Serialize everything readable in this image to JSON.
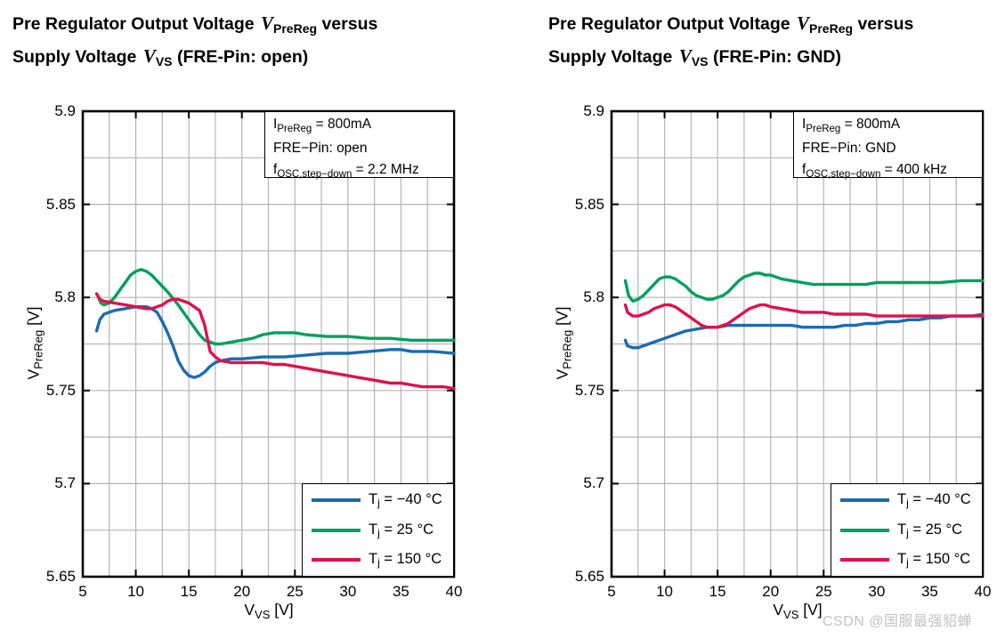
{
  "watermark": "CSDN @国服最强貂蝉",
  "colors": {
    "grid": "#b5b5b5",
    "frame": "#000000",
    "tick": "#000000",
    "watermark": "#c3c3c3"
  },
  "chart_data": [
    {
      "type": "line",
      "title": {
        "l1a": "Pre Regulator Output Voltage ",
        "v1": "V",
        "s1": "PreReg",
        "l1b": " versus",
        "l2a": "Supply Voltage ",
        "v2": "V",
        "s2": "VS",
        "l2b": " (FRE-Pin: open)"
      },
      "xlabel": {
        "sym": "V",
        "sub": "VS",
        "rest": " [V]"
      },
      "ylabel": {
        "sym": "V",
        "sub": "PreReg",
        "rest": " [V]"
      },
      "xlim": [
        5,
        40
      ],
      "ylim": [
        5.65,
        5.9
      ],
      "x_ticks": [
        "5",
        "10",
        "15",
        "20",
        "25",
        "30",
        "35",
        "40"
      ],
      "y_ticks": [
        "5.65",
        "5.7",
        "5.75",
        "5.8",
        "5.85",
        "5.9"
      ],
      "x_minor_step": 2.5,
      "y_minor_step": 0.025,
      "grid": true,
      "legend_position": "bottom-right",
      "annotation": {
        "line1": {
          "sym": "I",
          "sub": "PreReg",
          "rest": " = 800mA"
        },
        "line2": "FRE−Pin: open",
        "line3": {
          "sym": "f",
          "sub": "OSC,step−down",
          "rest": " = 2.2 MHz"
        }
      },
      "series": [
        {
          "name": "Tj = −40 °C",
          "label": {
            "sym": "T",
            "sub": "j",
            "rest": " = −40 °C"
          },
          "color": "#1b6bb2",
          "points": [
            [
              6.3,
              5.782
            ],
            [
              6.6,
              5.788
            ],
            [
              7,
              5.791
            ],
            [
              8,
              5.793
            ],
            [
              9,
              5.794
            ],
            [
              10,
              5.795
            ],
            [
              11,
              5.795
            ],
            [
              11.5,
              5.794
            ],
            [
              12,
              5.792
            ],
            [
              12.5,
              5.787
            ],
            [
              13,
              5.781
            ],
            [
              13.5,
              5.774
            ],
            [
              14,
              5.766
            ],
            [
              14.5,
              5.761
            ],
            [
              15,
              5.758
            ],
            [
              15.5,
              5.757
            ],
            [
              16,
              5.758
            ],
            [
              16.5,
              5.76
            ],
            [
              17,
              5.763
            ],
            [
              17.5,
              5.765
            ],
            [
              18,
              5.766
            ],
            [
              19,
              5.767
            ],
            [
              20,
              5.767
            ],
            [
              22,
              5.768
            ],
            [
              24,
              5.768
            ],
            [
              26,
              5.769
            ],
            [
              28,
              5.77
            ],
            [
              30,
              5.77
            ],
            [
              32,
              5.771
            ],
            [
              34,
              5.772
            ],
            [
              35,
              5.772
            ],
            [
              36,
              5.771
            ],
            [
              38,
              5.771
            ],
            [
              40,
              5.77
            ]
          ]
        },
        {
          "name": "Tj = 25 °C",
          "label": {
            "sym": "T",
            "sub": "j",
            "rest": " = 25 °C"
          },
          "color": "#00a15c",
          "points": [
            [
              6.4,
              5.801
            ],
            [
              6.7,
              5.797
            ],
            [
              7,
              5.796
            ],
            [
              7.5,
              5.797
            ],
            [
              8,
              5.8
            ],
            [
              8.5,
              5.804
            ],
            [
              9,
              5.808
            ],
            [
              9.5,
              5.812
            ],
            [
              10,
              5.814
            ],
            [
              10.5,
              5.815
            ],
            [
              11,
              5.814
            ],
            [
              11.5,
              5.812
            ],
            [
              12,
              5.809
            ],
            [
              13,
              5.803
            ],
            [
              14,
              5.796
            ],
            [
              15,
              5.788
            ],
            [
              16,
              5.78
            ],
            [
              16.5,
              5.777
            ],
            [
              17,
              5.776
            ],
            [
              17.5,
              5.775
            ],
            [
              18,
              5.775
            ],
            [
              19,
              5.776
            ],
            [
              20,
              5.777
            ],
            [
              21,
              5.778
            ],
            [
              22,
              5.78
            ],
            [
              23,
              5.781
            ],
            [
              24,
              5.781
            ],
            [
              25,
              5.781
            ],
            [
              26,
              5.78
            ],
            [
              28,
              5.779
            ],
            [
              30,
              5.779
            ],
            [
              32,
              5.778
            ],
            [
              34,
              5.778
            ],
            [
              36,
              5.777
            ],
            [
              38,
              5.777
            ],
            [
              40,
              5.777
            ]
          ]
        },
        {
          "name": "Tj = 150 °C",
          "label": {
            "sym": "T",
            "sub": "j",
            "rest": " = 150 °C"
          },
          "color": "#e01149",
          "points": [
            [
              6.3,
              5.802
            ],
            [
              6.6,
              5.799
            ],
            [
              7,
              5.798
            ],
            [
              8,
              5.797
            ],
            [
              9,
              5.796
            ],
            [
              10,
              5.795
            ],
            [
              11,
              5.794
            ],
            [
              11.5,
              5.794
            ],
            [
              12,
              5.795
            ],
            [
              12.5,
              5.796
            ],
            [
              13,
              5.798
            ],
            [
              13.5,
              5.799
            ],
            [
              14,
              5.799
            ],
            [
              14.5,
              5.798
            ],
            [
              15,
              5.797
            ],
            [
              15.5,
              5.795
            ],
            [
              16,
              5.793
            ],
            [
              16.5,
              5.785
            ],
            [
              17,
              5.771
            ],
            [
              17.5,
              5.768
            ],
            [
              18,
              5.766
            ],
            [
              19,
              5.765
            ],
            [
              20,
              5.765
            ],
            [
              21,
              5.765
            ],
            [
              22,
              5.765
            ],
            [
              23,
              5.764
            ],
            [
              24,
              5.764
            ],
            [
              25,
              5.763
            ],
            [
              26,
              5.762
            ],
            [
              27,
              5.761
            ],
            [
              28,
              5.76
            ],
            [
              29,
              5.759
            ],
            [
              30,
              5.758
            ],
            [
              31,
              5.757
            ],
            [
              32,
              5.756
            ],
            [
              33,
              5.755
            ],
            [
              34,
              5.754
            ],
            [
              35,
              5.754
            ],
            [
              36,
              5.753
            ],
            [
              37,
              5.752
            ],
            [
              38,
              5.752
            ],
            [
              39,
              5.752
            ],
            [
              40,
              5.751
            ]
          ]
        }
      ]
    },
    {
      "type": "line",
      "title": {
        "l1a": "Pre Regulator Output Voltage ",
        "v1": "V",
        "s1": "PreReg",
        "l1b": " versus",
        "l2a": "Supply Voltage ",
        "v2": "V",
        "s2": "VS",
        "l2b": " (FRE-Pin: GND)"
      },
      "xlabel": {
        "sym": "V",
        "sub": "VS",
        "rest": " [V]"
      },
      "ylabel": {
        "sym": "V",
        "sub": "PreReg",
        "rest": " [V]"
      },
      "xlim": [
        5,
        40
      ],
      "ylim": [
        5.65,
        5.9
      ],
      "x_ticks": [
        "5",
        "10",
        "15",
        "20",
        "25",
        "30",
        "35",
        "40"
      ],
      "y_ticks": [
        "5.65",
        "5.7",
        "5.75",
        "5.8",
        "5.85",
        "5.9"
      ],
      "x_minor_step": 2.5,
      "y_minor_step": 0.025,
      "grid": true,
      "legend_position": "bottom-right",
      "annotation": {
        "line1": {
          "sym": "I",
          "sub": "PreReg",
          "rest": " = 800mA"
        },
        "line2": "FRE−Pin: GND",
        "line3": {
          "sym": "f",
          "sub": "OSC,step−down",
          "rest": " = 400 kHz"
        }
      },
      "series": [
        {
          "name": "Tj = −40 °C",
          "label": {
            "sym": "T",
            "sub": "j",
            "rest": " = −40 °C"
          },
          "color": "#1b6bb2",
          "points": [
            [
              6.3,
              5.777
            ],
            [
              6.5,
              5.774
            ],
            [
              7,
              5.773
            ],
            [
              7.5,
              5.773
            ],
            [
              8,
              5.774
            ],
            [
              9,
              5.776
            ],
            [
              10,
              5.778
            ],
            [
              11,
              5.78
            ],
            [
              12,
              5.782
            ],
            [
              13,
              5.783
            ],
            [
              14,
              5.784
            ],
            [
              15,
              5.784
            ],
            [
              16,
              5.785
            ],
            [
              18,
              5.785
            ],
            [
              20,
              5.785
            ],
            [
              22,
              5.785
            ],
            [
              23,
              5.784
            ],
            [
              24,
              5.784
            ],
            [
              25,
              5.784
            ],
            [
              26,
              5.784
            ],
            [
              27,
              5.785
            ],
            [
              28,
              5.785
            ],
            [
              29,
              5.786
            ],
            [
              30,
              5.786
            ],
            [
              31,
              5.787
            ],
            [
              32,
              5.787
            ],
            [
              33,
              5.788
            ],
            [
              34,
              5.788
            ],
            [
              35,
              5.789
            ],
            [
              36,
              5.789
            ],
            [
              37,
              5.79
            ],
            [
              38,
              5.79
            ],
            [
              39,
              5.79
            ],
            [
              40,
              5.791
            ]
          ]
        },
        {
          "name": "Tj = 25 °C",
          "label": {
            "sym": "T",
            "sub": "j",
            "rest": " = 25 °C"
          },
          "color": "#00a15c",
          "points": [
            [
              6.3,
              5.809
            ],
            [
              6.6,
              5.801
            ],
            [
              7,
              5.798
            ],
            [
              7.5,
              5.799
            ],
            [
              8,
              5.801
            ],
            [
              8.5,
              5.804
            ],
            [
              9,
              5.807
            ],
            [
              9.5,
              5.81
            ],
            [
              10,
              5.811
            ],
            [
              10.5,
              5.811
            ],
            [
              11,
              5.81
            ],
            [
              11.5,
              5.808
            ],
            [
              12,
              5.806
            ],
            [
              12.5,
              5.803
            ],
            [
              13,
              5.801
            ],
            [
              13.5,
              5.8
            ],
            [
              14,
              5.799
            ],
            [
              14.5,
              5.799
            ],
            [
              15,
              5.8
            ],
            [
              15.5,
              5.801
            ],
            [
              16,
              5.803
            ],
            [
              16.5,
              5.806
            ],
            [
              17,
              5.809
            ],
            [
              17.5,
              5.811
            ],
            [
              18,
              5.812
            ],
            [
              18.5,
              5.813
            ],
            [
              19,
              5.813
            ],
            [
              19.5,
              5.812
            ],
            [
              20,
              5.812
            ],
            [
              21,
              5.81
            ],
            [
              22,
              5.809
            ],
            [
              23,
              5.808
            ],
            [
              24,
              5.807
            ],
            [
              25,
              5.807
            ],
            [
              26,
              5.807
            ],
            [
              27,
              5.807
            ],
            [
              28,
              5.807
            ],
            [
              29,
              5.807
            ],
            [
              30,
              5.808
            ],
            [
              32,
              5.808
            ],
            [
              34,
              5.808
            ],
            [
              36,
              5.808
            ],
            [
              38,
              5.809
            ],
            [
              40,
              5.809
            ]
          ]
        },
        {
          "name": "Tj = 150 °C",
          "label": {
            "sym": "T",
            "sub": "j",
            "rest": " = 150 °C"
          },
          "color": "#e01149",
          "points": [
            [
              6.3,
              5.796
            ],
            [
              6.5,
              5.792
            ],
            [
              7,
              5.79
            ],
            [
              7.5,
              5.79
            ],
            [
              8,
              5.791
            ],
            [
              8.5,
              5.792
            ],
            [
              9,
              5.794
            ],
            [
              9.5,
              5.795
            ],
            [
              10,
              5.796
            ],
            [
              10.5,
              5.796
            ],
            [
              11,
              5.795
            ],
            [
              11.5,
              5.793
            ],
            [
              12,
              5.791
            ],
            [
              12.5,
              5.789
            ],
            [
              13,
              5.787
            ],
            [
              13.5,
              5.785
            ],
            [
              14,
              5.784
            ],
            [
              14.5,
              5.784
            ],
            [
              15,
              5.784
            ],
            [
              15.5,
              5.785
            ],
            [
              16,
              5.786
            ],
            [
              16.5,
              5.788
            ],
            [
              17,
              5.79
            ],
            [
              17.5,
              5.792
            ],
            [
              18,
              5.794
            ],
            [
              18.5,
              5.795
            ],
            [
              19,
              5.796
            ],
            [
              19.5,
              5.796
            ],
            [
              20,
              5.795
            ],
            [
              21,
              5.794
            ],
            [
              22,
              5.793
            ],
            [
              23,
              5.792
            ],
            [
              24,
              5.792
            ],
            [
              25,
              5.792
            ],
            [
              26,
              5.791
            ],
            [
              27,
              5.791
            ],
            [
              28,
              5.791
            ],
            [
              29,
              5.791
            ],
            [
              30,
              5.79
            ],
            [
              32,
              5.79
            ],
            [
              34,
              5.79
            ],
            [
              36,
              5.79
            ],
            [
              38,
              5.79
            ],
            [
              40,
              5.79
            ]
          ]
        }
      ]
    }
  ]
}
